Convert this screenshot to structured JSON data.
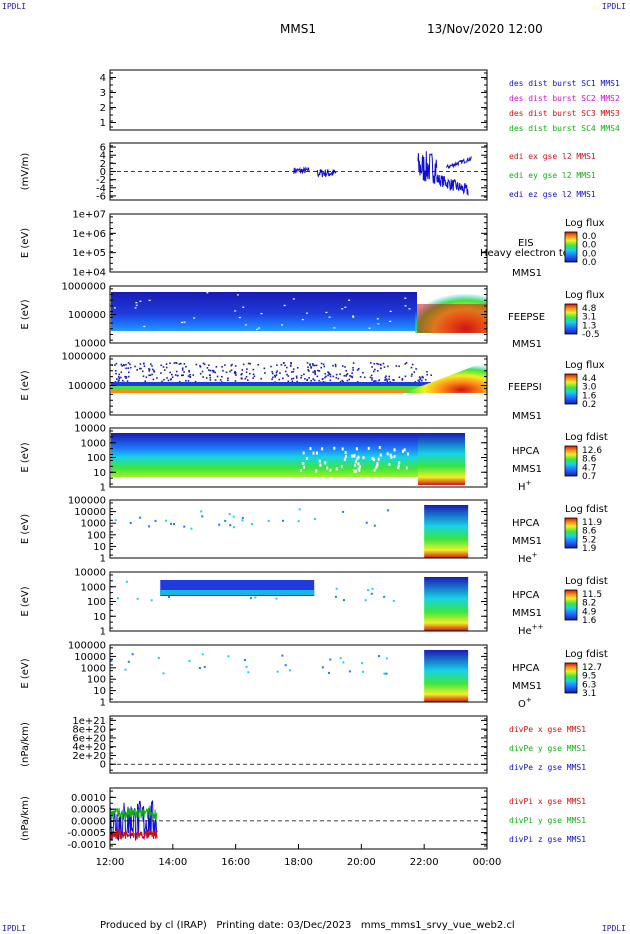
{
  "corners": {
    "top_left": "IPDLI",
    "top_right": "IPDLI",
    "bottom_left": "IPDLI",
    "bottom_right": "IPDLI"
  },
  "header": {
    "spacecraft": "MMS1",
    "datetime": "13/Nov/2020 12:00"
  },
  "footer": {
    "producer": "Produced by cl (IRAP)",
    "printing_date": "Printing date: 03/Dec/2023",
    "script": "mms_mms1_srvy_vue_web2.cl"
  },
  "colors": {
    "mms1": "#1010d0",
    "mms2": "#d010d0",
    "mms3": "#d01010",
    "mms4": "#10b010",
    "x_comp": "#d01010",
    "y_comp": "#10b010",
    "z_comp": "#1010d0"
  },
  "chart_data": {
    "type": "multi-panel time series (stacked line plots and spectrograms)",
    "x_axis": {
      "tick_labels": [
        "12:00",
        "14:00",
        "16:00",
        "18:00",
        "20:00",
        "22:00",
        "00:00"
      ],
      "range_hours": [
        12,
        24
      ]
    },
    "panels": [
      {
        "id": "dist-burst",
        "kind": "line",
        "ylabel": "",
        "yticks": [
          "1",
          "2",
          "3",
          "4"
        ],
        "ylim": [
          0.5,
          4.5
        ],
        "legend": [
          {
            "text": "des dist burst SC1 MMS1",
            "color": "#1010d0"
          },
          {
            "text": "des dist burst SC2 MMS2",
            "color": "#d010d0"
          },
          {
            "text": "des dist burst SC3 MMS3",
            "color": "#d01010"
          },
          {
            "text": "des dist burst SC4 MMS4",
            "color": "#10b010"
          }
        ]
      },
      {
        "id": "edi-e",
        "kind": "line",
        "ylabel": "(mV/m)",
        "yticks": [
          "-6",
          "-4",
          "-2",
          "0",
          "2",
          "4",
          "6"
        ],
        "ylim": [
          -7,
          7
        ],
        "zero_line": true,
        "legend": [
          {
            "text": "edi ex gse l2 MMS1",
            "color": "#d01010"
          },
          {
            "text": "edi ey gse l2 MMS1",
            "color": "#10b010"
          },
          {
            "text": "edi ez gse l2 MMS1",
            "color": "#1010d0"
          }
        ],
        "segments": [
          {
            "t0": 17.85,
            "t1": 18.35,
            "center": 0.2,
            "spread": 0.8
          },
          {
            "t0": 18.6,
            "t1": 19.2,
            "center": -0.4,
            "spread": 1.1
          },
          {
            "t0": 21.8,
            "t1": 22.4,
            "center": 1.0,
            "spread": 4.0
          },
          {
            "t0": 22.4,
            "t1": 23.4,
            "center": -1.8,
            "spread": 1.5,
            "trend": -3.0
          },
          {
            "t0": 22.7,
            "t1": 23.5,
            "center": 1.0,
            "spread": 0.5,
            "trend": 2.2
          }
        ]
      },
      {
        "id": "eis",
        "kind": "spectrogram",
        "ylabel": "E (eV)",
        "yticks": [
          "1e+04",
          "1e+05",
          "1e+06",
          "1e+07"
        ],
        "labels": [
          "EIS",
          "MMS1"
        ],
        "extra_label": "Heavy electron to",
        "colorbar_title": "Log flux",
        "colorbar_ticks": [
          "0.0",
          "0.0",
          "0.0",
          "0.0"
        ],
        "filled": false
      },
      {
        "id": "feepse",
        "kind": "spectrogram",
        "ylabel": "E (eV)",
        "yticks": [
          "10000",
          "100000",
          "1000000"
        ],
        "labels": [
          "FEEPSE",
          "MMS1"
        ],
        "colorbar_title": "Log flux",
        "colorbar_ticks": [
          "4.8",
          "3.1",
          "1.3",
          "-0.5"
        ],
        "filled": true
      },
      {
        "id": "feepsi",
        "kind": "spectrogram",
        "ylabel": "E (eV)",
        "yticks": [
          "10000",
          "100000",
          "1000000"
        ],
        "labels": [
          "FEEPSI",
          "MMS1"
        ],
        "colorbar_title": "Log flux",
        "colorbar_ticks": [
          "4.4",
          "3.0",
          "1.6",
          "0.2"
        ],
        "filled": true
      },
      {
        "id": "hpca-h",
        "kind": "spectrogram",
        "ylabel": "E (eV)",
        "yticks": [
          "1",
          "10",
          "100",
          "1000",
          "10000"
        ],
        "labels": [
          "HPCA",
          "MMS1"
        ],
        "species": "H",
        "species_sup": "+",
        "colorbar_title": "Log fdist",
        "colorbar_ticks": [
          "12.6",
          "8.6",
          "4.7",
          "0.7"
        ],
        "filled": true
      },
      {
        "id": "hpca-he1",
        "kind": "spectrogram",
        "ylabel": "E (eV)",
        "yticks": [
          "1",
          "10",
          "100",
          "1000",
          "10000",
          "100000"
        ],
        "labels": [
          "HPCA",
          "MMS1"
        ],
        "species": "He",
        "species_sup": "+",
        "colorbar_title": "Log fdist",
        "colorbar_ticks": [
          "11.9",
          "8.6",
          "5.2",
          "1.9"
        ],
        "filled": true
      },
      {
        "id": "hpca-he2",
        "kind": "spectrogram",
        "ylabel": "E (eV)",
        "yticks": [
          "1",
          "10",
          "100",
          "1000",
          "10000"
        ],
        "labels": [
          "HPCA",
          "MMS1"
        ],
        "species": "He",
        "species_sup": "++",
        "colorbar_title": "Log fdist",
        "colorbar_ticks": [
          "11.5",
          "8.2",
          "4.9",
          "1.6"
        ],
        "filled": true
      },
      {
        "id": "hpca-o",
        "kind": "spectrogram",
        "ylabel": "E (eV)",
        "yticks": [
          "1",
          "10",
          "100",
          "1000",
          "10000",
          "100000"
        ],
        "labels": [
          "HPCA",
          "MMS1"
        ],
        "species": "O",
        "species_sup": "+",
        "colorbar_title": "Log fdist",
        "colorbar_ticks": [
          "12.7",
          "9.5",
          "6.3",
          "3.1"
        ],
        "filled": true
      },
      {
        "id": "divpe",
        "kind": "line",
        "ylabel": "(nPa/km)",
        "yticks": [
          "0",
          "2e+20",
          "4e+20",
          "6e+20",
          "8e+20",
          "1e+21"
        ],
        "ylim": [
          -2e+20,
          1.1e+21
        ],
        "zero_line": true,
        "legend": [
          {
            "text": "divPe x gse MMS1",
            "color": "#d01010"
          },
          {
            "text": "divPe y gse MMS1",
            "color": "#10b010"
          },
          {
            "text": "divPe z gse MMS1",
            "color": "#1010d0"
          }
        ]
      },
      {
        "id": "divpi",
        "kind": "line",
        "ylabel": "(nPa/km)",
        "yticks": [
          "-0.0010",
          "-0.0005",
          "0.0000",
          "0.0005",
          "0.0010"
        ],
        "ylim": [
          -0.0012,
          0.0014
        ],
        "zero_line": true,
        "legend": [
          {
            "text": "divPi x gse MMS1",
            "color": "#d01010"
          },
          {
            "text": "divPi y gse MMS1",
            "color": "#10b010"
          },
          {
            "text": "divPi z gse MMS1",
            "color": "#1010d0"
          }
        ],
        "segments": [
          {
            "t0": 12.0,
            "t1": 13.5,
            "center": 0.0,
            "spread": 0.0009
          }
        ]
      }
    ]
  }
}
